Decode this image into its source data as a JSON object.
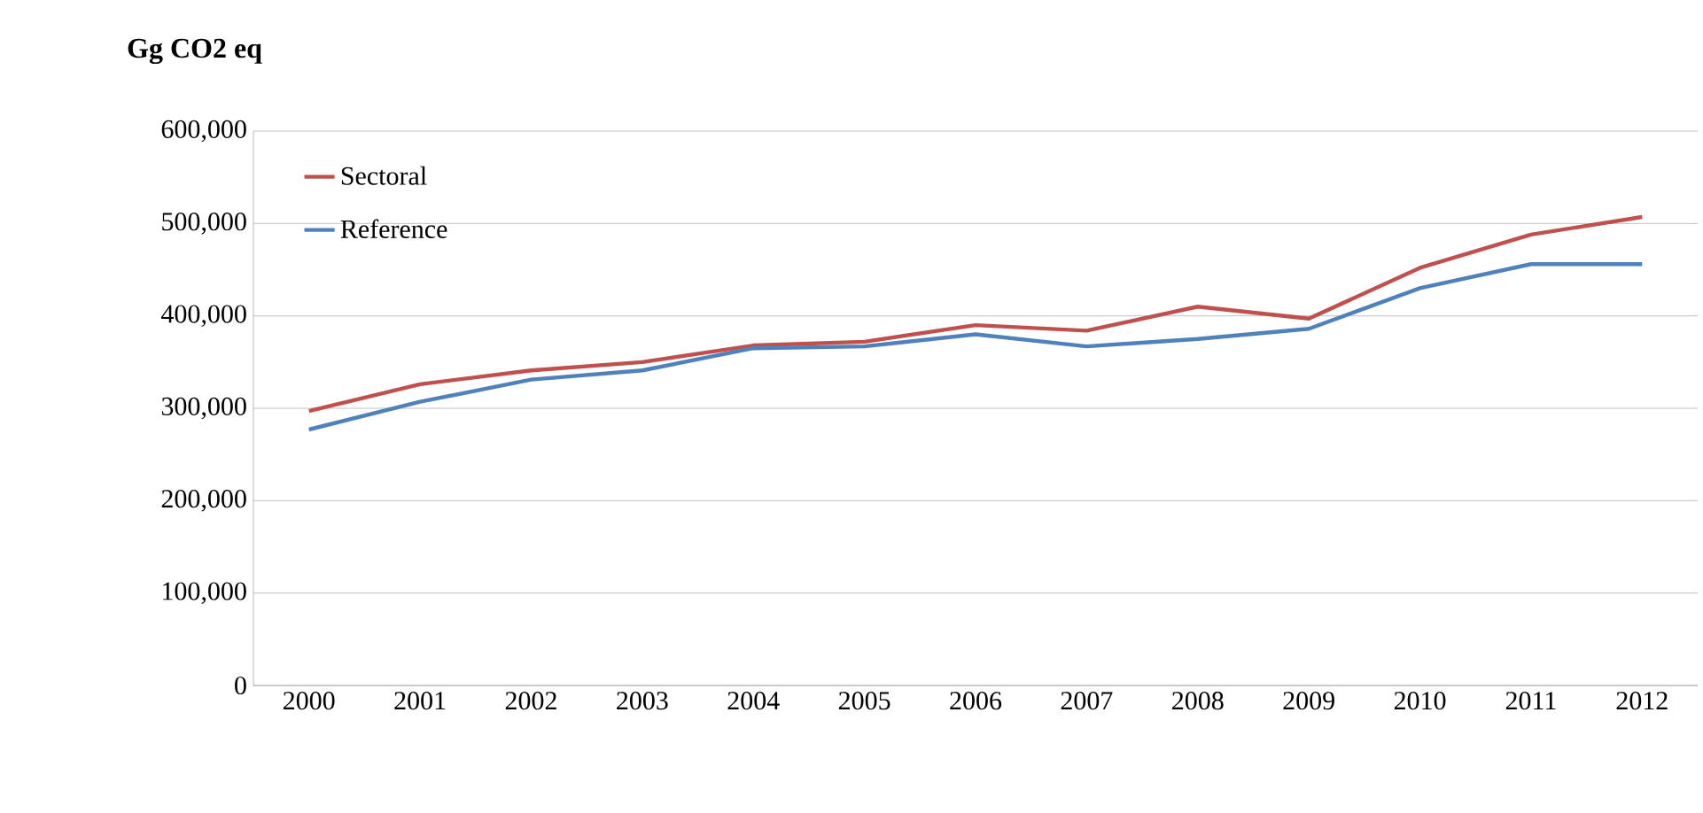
{
  "chart_data": {
    "type": "line",
    "ylabel": "Gg CO2 eq",
    "categories": [
      "2000",
      "2001",
      "2002",
      "2003",
      "2004",
      "2005",
      "2006",
      "2007",
      "2008",
      "2009",
      "2010",
      "2011",
      "2012"
    ],
    "series": [
      {
        "name": "Sectoral",
        "color": "#c0504d",
        "values": [
          297000,
          326000,
          341000,
          350000,
          368000,
          372000,
          390000,
          384000,
          410000,
          397000,
          452000,
          488000,
          507000
        ]
      },
      {
        "name": "Reference",
        "color": "#4f81bd",
        "values": [
          277000,
          307000,
          331000,
          341000,
          365000,
          367000,
          380000,
          367000,
          375000,
          386000,
          430000,
          456000,
          456000
        ]
      }
    ],
    "ylim": [
      0,
      600000
    ],
    "yticks": [
      {
        "value": 0,
        "label": "0"
      },
      {
        "value": 100000,
        "label": "100,000"
      },
      {
        "value": 200000,
        "label": "200,000"
      },
      {
        "value": 300000,
        "label": "300,000"
      },
      {
        "value": 400000,
        "label": "400,000"
      },
      {
        "value": 500000,
        "label": "500,000"
      },
      {
        "value": 600000,
        "label": "600,000"
      }
    ],
    "grid": "y",
    "legend": "top left",
    "marker": "none",
    "line_style": "solid"
  }
}
